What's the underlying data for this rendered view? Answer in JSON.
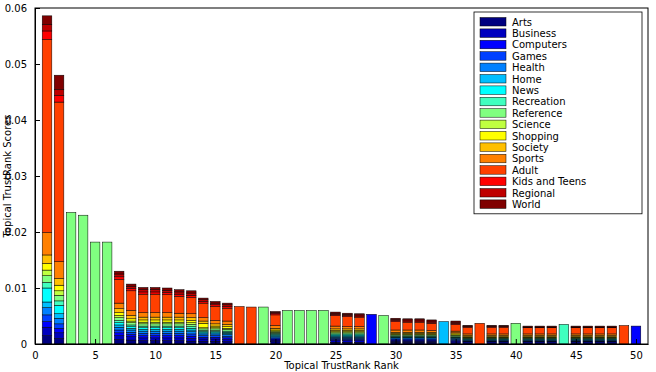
{
  "chart_data": {
    "type": "bar",
    "stacked": true,
    "x_label": "Topical TrustRank Rank",
    "y_label": "Topical TrustRank Scores",
    "legend": "upper right",
    "x": [
      1,
      2,
      3,
      4,
      5,
      6,
      7,
      8,
      9,
      10,
      11,
      12,
      13,
      14,
      15,
      16,
      17,
      18,
      19,
      20,
      21,
      22,
      23,
      24,
      25,
      26,
      27,
      28,
      29,
      30,
      31,
      32,
      33,
      34,
      35,
      36,
      37,
      38,
      39,
      40,
      41,
      42,
      43,
      44,
      45,
      46,
      47,
      48,
      49,
      50
    ],
    "xlim": [
      0,
      51
    ],
    "xticks": [
      0,
      5,
      10,
      15,
      20,
      25,
      30,
      35,
      40,
      45,
      50
    ],
    "ylim": [
      0,
      0.06
    ],
    "yticks": [
      0,
      0.01,
      0.02,
      0.03,
      0.04,
      0.05,
      0.06
    ],
    "series": [
      {
        "name": "Arts",
        "color": "#000080",
        "values": [
          0.0015,
          0.001,
          0,
          0,
          0,
          0,
          0.0008,
          0.0007,
          0.0006,
          0.0006,
          0.0006,
          0.0006,
          0.0005,
          0.0005,
          0.0005,
          0.0004,
          0,
          0,
          0,
          0.0004,
          0,
          0,
          0,
          0,
          0.0003,
          0.0003,
          0.0003,
          0,
          0,
          0.0003,
          0.0003,
          0.0003,
          0.0003,
          0,
          0.0002,
          0.0002,
          0,
          0.0002,
          0.0002,
          0,
          0.0002,
          0.0002,
          0.0002,
          0,
          0.0002,
          0.0002,
          0.0002,
          0.0002,
          0,
          0
        ]
      },
      {
        "name": "Business",
        "color": "#0000bf",
        "values": [
          0.0015,
          0.001,
          0,
          0,
          0,
          0,
          0.0007,
          0.0006,
          0.0005,
          0.0005,
          0.0005,
          0.0005,
          0.0005,
          0.0004,
          0.0004,
          0.0004,
          0,
          0,
          0,
          0.0003,
          0,
          0,
          0,
          0,
          0.0003,
          0.0003,
          0.0003,
          0,
          0,
          0.0002,
          0.0002,
          0.0002,
          0.0002,
          0,
          0.0002,
          0.0002,
          0,
          0.0002,
          0.0002,
          0,
          0.0002,
          0.0002,
          0.0002,
          0,
          0.0002,
          0.0002,
          0.0002,
          0.0002,
          0,
          0
        ]
      },
      {
        "name": "Computers",
        "color": "#0000ff",
        "values": [
          0.001,
          0.0008,
          0,
          0,
          0,
          0,
          0.0005,
          0.0004,
          0.0004,
          0.0004,
          0.0004,
          0.0004,
          0.0004,
          0.0003,
          0.0003,
          0.0003,
          0,
          0,
          0,
          0.0002,
          0,
          0,
          0,
          0,
          0.0002,
          0.0002,
          0.0002,
          0.0053,
          0,
          0.0002,
          0.0002,
          0.0002,
          0.0002,
          0,
          0.0002,
          0.0001,
          0,
          0.0001,
          0.0001,
          0,
          0.0001,
          0.0001,
          0.0001,
          0,
          0.0001,
          0.0001,
          0.0001,
          0.0001,
          0,
          0.0032
        ]
      },
      {
        "name": "Games",
        "color": "#0040ff",
        "values": [
          0.0012,
          0.0008,
          0,
          0,
          0,
          0,
          0.0005,
          0.0004,
          0.0004,
          0.0004,
          0.0004,
          0.0004,
          0.0004,
          0.0003,
          0.0003,
          0.0003,
          0,
          0,
          0,
          0.0002,
          0,
          0,
          0,
          0,
          0.0002,
          0.0002,
          0.0002,
          0,
          0,
          0.0002,
          0.0002,
          0.0002,
          0.0002,
          0,
          0.0002,
          0.0001,
          0,
          0.0001,
          0.0001,
          0,
          0.0001,
          0.0001,
          0.0001,
          0,
          0.0001,
          0.0001,
          0.0001,
          0.0001,
          0,
          0
        ]
      },
      {
        "name": "Health",
        "color": "#0080ff",
        "values": [
          0.0013,
          0.001,
          0,
          0,
          0,
          0,
          0.0005,
          0.0004,
          0.0004,
          0.0004,
          0.0004,
          0.0004,
          0.0004,
          0.0003,
          0.0003,
          0.0003,
          0,
          0,
          0,
          0.0002,
          0,
          0,
          0,
          0,
          0.0002,
          0.0002,
          0.0002,
          0,
          0,
          0.0002,
          0.0002,
          0.0002,
          0.0002,
          0,
          0.0002,
          0.0001,
          0,
          0.0001,
          0.0001,
          0,
          0.0001,
          0.0001,
          0.0001,
          0,
          0.0001,
          0.0001,
          0.0001,
          0.0001,
          0,
          0
        ]
      },
      {
        "name": "Home",
        "color": "#00bfff",
        "values": [
          0.001,
          0.0008,
          0,
          0,
          0,
          0,
          0.0004,
          0.0003,
          0.0003,
          0.0003,
          0.0003,
          0.0003,
          0.0003,
          0.0002,
          0.0002,
          0.0002,
          0,
          0,
          0,
          0.0002,
          0,
          0,
          0,
          0,
          0.0002,
          0.0002,
          0.0002,
          0,
          0,
          0.0001,
          0.0001,
          0.0001,
          0.0001,
          0.004,
          0.0001,
          0.0001,
          0,
          0.0001,
          0.0001,
          0,
          0.0001,
          0.0001,
          0.0001,
          0,
          0.0001,
          0.0001,
          0.0001,
          0.0001,
          0,
          0
        ]
      },
      {
        "name": "News",
        "color": "#00ffff",
        "values": [
          0.0025,
          0.0015,
          0,
          0,
          0,
          0,
          0.0004,
          0.0003,
          0.0003,
          0.0003,
          0.0003,
          0.0003,
          0.0003,
          0.0002,
          0.0002,
          0.0002,
          0,
          0,
          0,
          0.0002,
          0,
          0,
          0,
          0,
          0.0002,
          0.0002,
          0.0002,
          0,
          0,
          0.0001,
          0.0001,
          0.0001,
          0.0001,
          0,
          0.0001,
          0.0001,
          0,
          0.0001,
          0.0001,
          0,
          0.0001,
          0.0001,
          0.0001,
          0,
          0.0001,
          0.0001,
          0.0001,
          0.0001,
          0,
          0
        ]
      },
      {
        "name": "Recreation",
        "color": "#40ffbf",
        "values": [
          0.001,
          0.0008,
          0,
          0,
          0,
          0,
          0.0004,
          0.0003,
          0.0003,
          0.0003,
          0.0003,
          0.0003,
          0.0003,
          0.0002,
          0.0002,
          0.0002,
          0,
          0,
          0,
          0.0002,
          0,
          0,
          0,
          0,
          0.0002,
          0.0002,
          0.0002,
          0,
          0,
          0.0001,
          0.0001,
          0.0001,
          0.0001,
          0,
          0.0001,
          0.0001,
          0,
          0.0001,
          0.0001,
          0,
          0.0001,
          0.0001,
          0.0001,
          0.0035,
          0.0001,
          0.0001,
          0.0001,
          0.0001,
          0,
          0
        ]
      },
      {
        "name": "Reference",
        "color": "#80ff80",
        "values": [
          0.0012,
          0.001,
          0.0235,
          0.023,
          0.0182,
          0.0182,
          0.0005,
          0.0004,
          0.0004,
          0.0004,
          0.0004,
          0.0004,
          0.0004,
          0.0003,
          0.0003,
          0.0003,
          0,
          0,
          0.0066,
          0.0002,
          0.006,
          0.006,
          0.006,
          0.006,
          0.0002,
          0.0002,
          0.0002,
          0,
          0.0051,
          0.0002,
          0.0002,
          0.0002,
          0.0002,
          0,
          0.0002,
          0.0001,
          0,
          0.0001,
          0.0001,
          0.0037,
          0.0001,
          0.0001,
          0.0001,
          0,
          0.0001,
          0.0001,
          0.0001,
          0.0001,
          0,
          0
        ]
      },
      {
        "name": "Science",
        "color": "#bfff40",
        "values": [
          0.001,
          0.0008,
          0,
          0,
          0,
          0,
          0.0004,
          0.0003,
          0.0003,
          0.0003,
          0.0003,
          0.0003,
          0.0003,
          0.0002,
          0.0002,
          0.0002,
          0,
          0,
          0,
          0.0002,
          0,
          0,
          0,
          0,
          0.0002,
          0.0002,
          0.0002,
          0,
          0,
          0.0001,
          0.0001,
          0.0001,
          0.0001,
          0,
          0.0001,
          0.0001,
          0,
          0.0001,
          0.0001,
          0,
          0.0001,
          0.0001,
          0.0001,
          0,
          0.0001,
          0.0001,
          0.0001,
          0.0001,
          0,
          0
        ]
      },
      {
        "name": "Shopping",
        "color": "#ffff00",
        "values": [
          0.0012,
          0.001,
          0,
          0,
          0,
          0,
          0.0005,
          0.0004,
          0.0004,
          0.0004,
          0.0004,
          0.0004,
          0.0004,
          0.0008,
          0.0003,
          0.0003,
          0,
          0,
          0,
          0.0002,
          0,
          0,
          0,
          0,
          0.0002,
          0.0002,
          0.0002,
          0,
          0,
          0.0002,
          0.0002,
          0.0002,
          0.0002,
          0,
          0.0002,
          0.0001,
          0,
          0.0001,
          0.0001,
          0,
          0.0001,
          0.0001,
          0.0001,
          0,
          0.0001,
          0.0001,
          0.0001,
          0.0001,
          0,
          0
        ]
      },
      {
        "name": "Society",
        "color": "#ffbf00",
        "values": [
          0.0015,
          0.0012,
          0,
          0,
          0,
          0,
          0.0007,
          0.0006,
          0.0005,
          0.0005,
          0.0005,
          0.0005,
          0.0005,
          0.0004,
          0.0004,
          0.0004,
          0,
          0,
          0,
          0.0003,
          0,
          0,
          0,
          0,
          0.0003,
          0.0003,
          0.0003,
          0,
          0,
          0.0002,
          0.0002,
          0.0002,
          0.0002,
          0,
          0.0002,
          0.0002,
          0,
          0.0002,
          0.0002,
          0,
          0.0002,
          0.0002,
          0.0002,
          0,
          0.0002,
          0.0002,
          0.0002,
          0.0002,
          0,
          0
        ]
      },
      {
        "name": "Sports",
        "color": "#ff8000",
        "values": [
          0.004,
          0.003,
          0,
          0,
          0,
          0,
          0.001,
          0.0009,
          0.0008,
          0.0008,
          0.0008,
          0.0007,
          0.0007,
          0.0006,
          0.0006,
          0.0006,
          0,
          0,
          0,
          0.0005,
          0,
          0,
          0,
          0,
          0.0005,
          0.0004,
          0.0004,
          0,
          0,
          0.0004,
          0.0004,
          0.0004,
          0.0003,
          0,
          0.0003,
          0.0003,
          0,
          0.0003,
          0.0003,
          0,
          0.0003,
          0.0003,
          0.0003,
          0,
          0.0003,
          0.0003,
          0.0003,
          0.0003,
          0,
          0
        ]
      },
      {
        "name": "Adult",
        "color": "#ff4000",
        "values": [
          0.0345,
          0.0285,
          0,
          0,
          0,
          0,
          0.0042,
          0.0035,
          0.0033,
          0.0033,
          0.0032,
          0.003,
          0.0029,
          0.0026,
          0.0025,
          0.0023,
          0.0067,
          0.0066,
          0,
          0.0019,
          0,
          0,
          0,
          0,
          0.0019,
          0.0018,
          0.0017,
          0,
          0,
          0.0015,
          0.0014,
          0.0014,
          0.0013,
          0,
          0.0012,
          0.0012,
          0.0037,
          0.0012,
          0.0012,
          0,
          0.0011,
          0.0011,
          0.0011,
          0,
          0.0011,
          0.0011,
          0.0011,
          0.0011,
          0.0033,
          0
        ]
      },
      {
        "name": "Kids and Teens",
        "color": "#ff0000",
        "values": [
          0.0015,
          0.0012,
          0,
          0,
          0,
          0,
          0.0005,
          0.0004,
          0.0004,
          0.0004,
          0.0004,
          0.0004,
          0.0004,
          0.0003,
          0.0003,
          0.0003,
          0,
          0,
          0,
          0.0002,
          0,
          0,
          0,
          0,
          0.0002,
          0.0002,
          0.0002,
          0,
          0,
          0.0002,
          0.0002,
          0.0002,
          0.0002,
          0,
          0.0002,
          0.0001,
          0,
          0.0001,
          0.0001,
          0,
          0.0001,
          0.0001,
          0.0001,
          0,
          0.0001,
          0.0001,
          0.0001,
          0.0001,
          0,
          0
        ]
      },
      {
        "name": "Regional",
        "color": "#bf0000",
        "values": [
          0.0012,
          0.001,
          0,
          0,
          0,
          0,
          0.0005,
          0.0004,
          0.0004,
          0.0004,
          0.0004,
          0.0004,
          0.0004,
          0.0003,
          0.0003,
          0.0003,
          0,
          0,
          0,
          0.0002,
          0,
          0,
          0,
          0,
          0.0002,
          0.0002,
          0.0002,
          0,
          0,
          0.0002,
          0.0002,
          0.0002,
          0.0002,
          0,
          0.0002,
          0.0001,
          0,
          0.0001,
          0.0001,
          0,
          0.0001,
          0.0001,
          0.0001,
          0,
          0.0001,
          0.0001,
          0.0001,
          0.0001,
          0,
          0
        ]
      },
      {
        "name": "World",
        "color": "#800000",
        "values": [
          0.0015,
          0.0026,
          0,
          0,
          0,
          0,
          0.0005,
          0.0004,
          0.0004,
          0.0004,
          0.0004,
          0.0004,
          0.0004,
          0.0003,
          0.0003,
          0.0003,
          0,
          0,
          0,
          0.0002,
          0,
          0,
          0,
          0,
          0.0002,
          0.0002,
          0.0002,
          0,
          0,
          0.0002,
          0.0002,
          0.0002,
          0.0002,
          0,
          0.0002,
          0.0001,
          0,
          0.0001,
          0.0001,
          0,
          0.0001,
          0.0001,
          0.0001,
          0,
          0.0001,
          0.0001,
          0.0001,
          0.0001,
          0,
          0
        ]
      }
    ]
  }
}
